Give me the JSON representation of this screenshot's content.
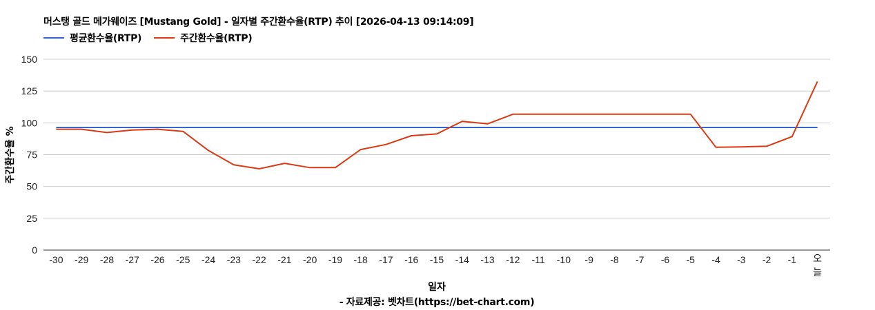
{
  "header": {
    "title": "머스탱 골드 메가웨이즈 [Mustang Gold] - 일자별 주간환수율(RTP) 추이 [2026-04-13 09:14:09]"
  },
  "legend": {
    "items": [
      {
        "label": "평균환수율(RTP)",
        "color": "#3366cc"
      },
      {
        "label": "주간환수율(RTP)",
        "color": "#dc3912"
      }
    ]
  },
  "axes": {
    "y_title": "주간환수율 %",
    "x_title": "일자"
  },
  "footer": {
    "credit": "- 자료제공: 벳차트(https://bet-chart.com)"
  },
  "chart_data": {
    "type": "line",
    "title": "머스탱 골드 메가웨이즈 [Mustang Gold] - 일자별 주간환수율(RTP) 추이 [2026-04-13 09:14:09]",
    "xlabel": "일자",
    "ylabel": "주간환수율 %",
    "ylim": [
      0,
      150
    ],
    "yticks": [
      0,
      25,
      50,
      75,
      100,
      125,
      150
    ],
    "grid": true,
    "legend_position": "top",
    "categories": [
      "-30",
      "-29",
      "-28",
      "-27",
      "-26",
      "-25",
      "-24",
      "-23",
      "-22",
      "-21",
      "-20",
      "-19",
      "-18",
      "-17",
      "-16",
      "-15",
      "-14",
      "-13",
      "-12",
      "-11",
      "-10",
      "-9",
      "-8",
      "-7",
      "-6",
      "-5",
      "-4",
      "-3",
      "-2",
      "-1",
      "오늘"
    ],
    "series": [
      {
        "name": "평균환수율(RTP)",
        "color": "#3366cc",
        "values": [
          96.4,
          96.4,
          96.4,
          96.4,
          96.4,
          96.4,
          96.4,
          96.4,
          96.4,
          96.4,
          96.4,
          96.4,
          96.4,
          96.4,
          96.4,
          96.4,
          96.4,
          96.4,
          96.4,
          96.4,
          96.4,
          96.4,
          96.4,
          96.4,
          96.4,
          96.4,
          96.4,
          96.4,
          96.4,
          96.4,
          96.4
        ]
      },
      {
        "name": "주간환수율(RTP)",
        "color": "#dc3912",
        "values": [
          95.0,
          95.0,
          92.4,
          94.4,
          95.0,
          93.3,
          78.3,
          67.0,
          63.9,
          68.2,
          64.8,
          64.8,
          79.0,
          83.0,
          89.9,
          91.3,
          101.2,
          99.2,
          106.8,
          106.8,
          106.8,
          106.8,
          106.8,
          106.8,
          106.8,
          106.8,
          80.8,
          81.1,
          81.6,
          89.2,
          132.5
        ]
      }
    ]
  }
}
